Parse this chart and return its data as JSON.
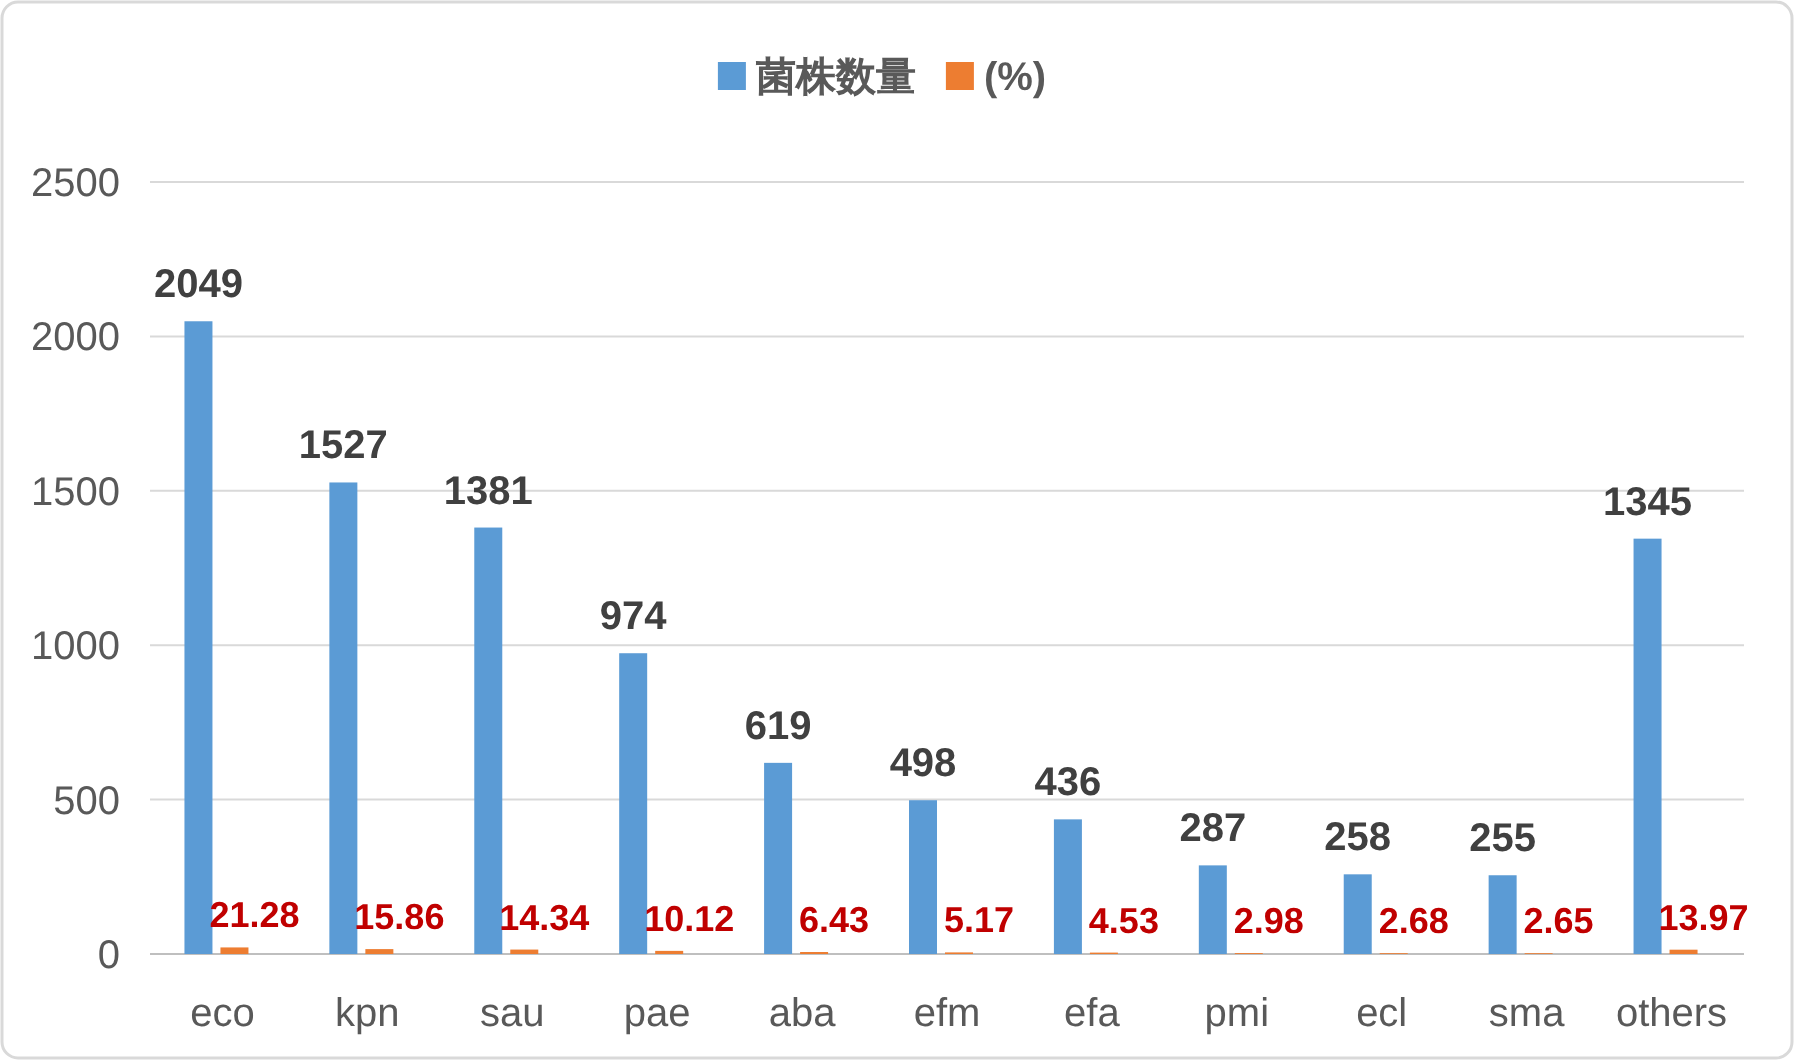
{
  "chart_data": {
    "type": "bar",
    "categories": [
      "eco",
      "kpn",
      "sau",
      "pae",
      "aba",
      "efm",
      "efa",
      "pmi",
      "ecl",
      "sma",
      "others"
    ],
    "series": [
      {
        "name": "菌株数量",
        "color": "#5b9bd5",
        "values": [
          2049,
          1527,
          1381,
          974,
          619,
          498,
          436,
          287,
          258,
          255,
          1345
        ]
      },
      {
        "name": "(%)",
        "color": "#ed7d31",
        "values": [
          21.28,
          15.86,
          14.34,
          10.12,
          6.43,
          5.17,
          4.53,
          2.98,
          2.68,
          2.65,
          13.97
        ]
      }
    ],
    "ylim": [
      0,
      2500
    ],
    "yticks": [
      0,
      500,
      1000,
      1500,
      2000,
      2500
    ],
    "grid": "y",
    "legend": "top",
    "data_labels": true
  }
}
